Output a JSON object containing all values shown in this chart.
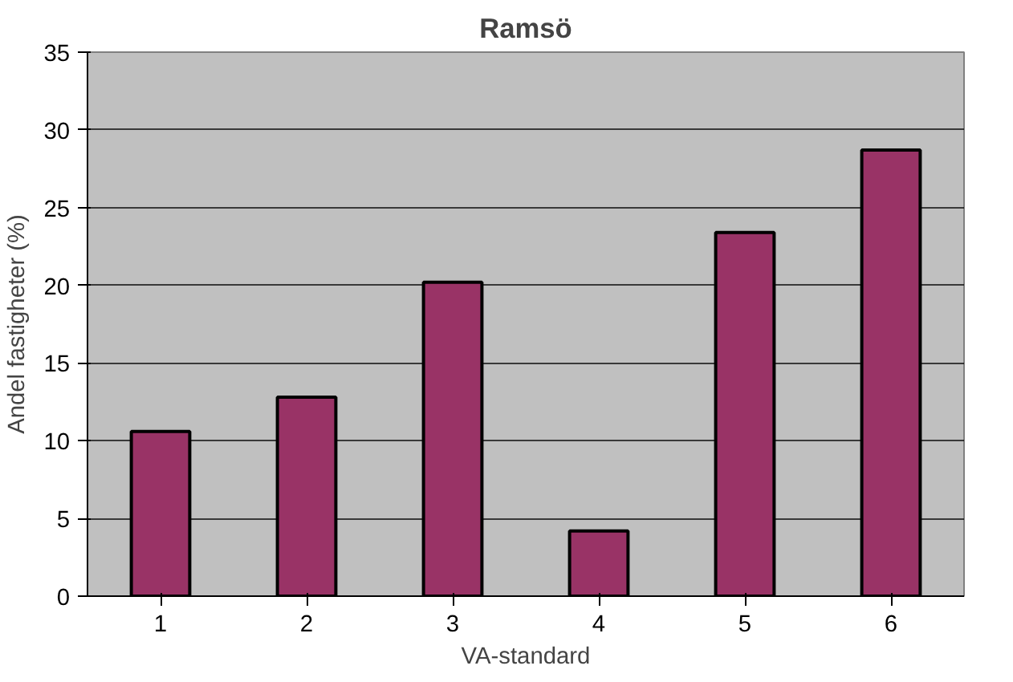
{
  "chart_data": {
    "type": "bar",
    "title": "Ramsö",
    "xlabel": "VA-standard",
    "ylabel": "Andel fastigheter (%)",
    "categories": [
      "1",
      "2",
      "3",
      "4",
      "5",
      "6"
    ],
    "values": [
      10.6,
      12.8,
      20.2,
      4.2,
      23.4,
      28.7
    ],
    "color": "#993366",
    "ylim": [
      0,
      35
    ],
    "yticks": [
      0,
      5,
      10,
      15,
      20,
      25,
      30,
      35
    ],
    "grid": "y"
  }
}
